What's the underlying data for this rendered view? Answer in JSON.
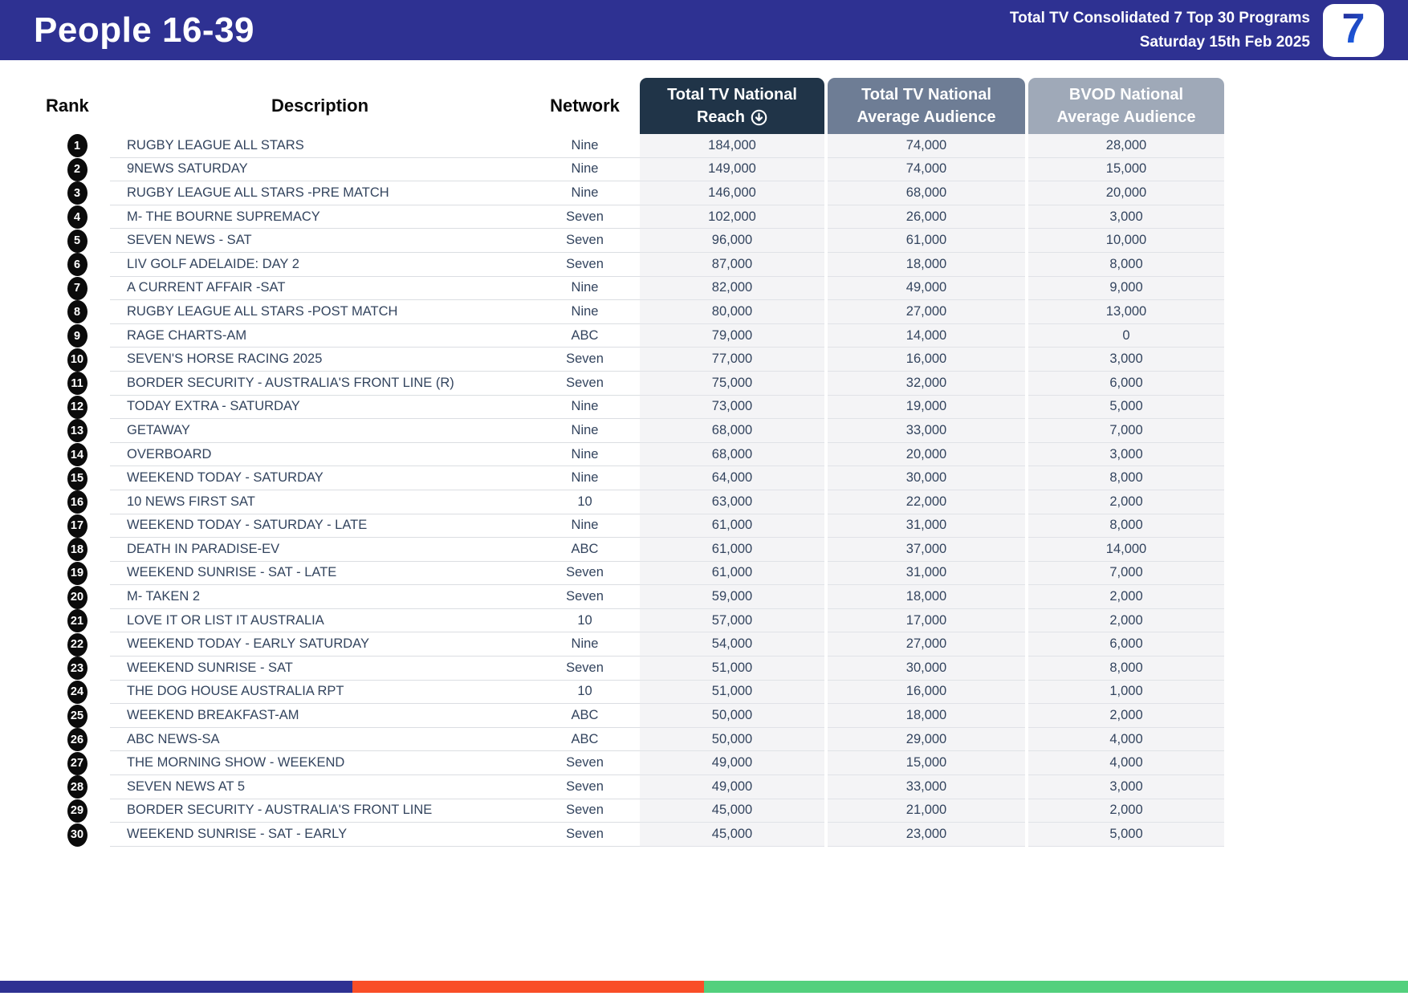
{
  "header": {
    "title": "People 16-39",
    "subtitle_line1": "Total TV Consolidated 7 Top 30 Programs",
    "subtitle_line2": "Saturday 15th Feb 2025",
    "logo_text": "7"
  },
  "table": {
    "plain_columns": {
      "rank": "Rank",
      "description": "Description",
      "network": "Network"
    },
    "value_columns": [
      {
        "line1": "Total TV National",
        "line2": "Reach",
        "sorted": true,
        "color": "#203448"
      },
      {
        "line1": "Total TV National",
        "line2": "Average Audience",
        "sorted": false,
        "color": "#6E7D95"
      },
      {
        "line1": "BVOD National",
        "line2": "Average Audience",
        "sorted": false,
        "color": "#9FA9B8"
      }
    ],
    "rows": [
      {
        "rank": "1",
        "description": "RUGBY LEAGUE ALL STARS",
        "network": "Nine",
        "reach": "184,000",
        "avg_audience": "74,000",
        "bvod_audience": "28,000"
      },
      {
        "rank": "2",
        "description": "9NEWS SATURDAY",
        "network": "Nine",
        "reach": "149,000",
        "avg_audience": "74,000",
        "bvod_audience": "15,000"
      },
      {
        "rank": "3",
        "description": "RUGBY LEAGUE ALL STARS -PRE MATCH",
        "network": "Nine",
        "reach": "146,000",
        "avg_audience": "68,000",
        "bvod_audience": "20,000"
      },
      {
        "rank": "4",
        "description": "M- THE BOURNE SUPREMACY",
        "network": "Seven",
        "reach": "102,000",
        "avg_audience": "26,000",
        "bvod_audience": "3,000"
      },
      {
        "rank": "5",
        "description": "SEVEN NEWS - SAT",
        "network": "Seven",
        "reach": "96,000",
        "avg_audience": "61,000",
        "bvod_audience": "10,000"
      },
      {
        "rank": "6",
        "description": "LIV GOLF ADELAIDE: DAY 2",
        "network": "Seven",
        "reach": "87,000",
        "avg_audience": "18,000",
        "bvod_audience": "8,000"
      },
      {
        "rank": "7",
        "description": "A CURRENT AFFAIR -SAT",
        "network": "Nine",
        "reach": "82,000",
        "avg_audience": "49,000",
        "bvod_audience": "9,000"
      },
      {
        "rank": "8",
        "description": "RUGBY LEAGUE ALL STARS -POST MATCH",
        "network": "Nine",
        "reach": "80,000",
        "avg_audience": "27,000",
        "bvod_audience": "13,000"
      },
      {
        "rank": "9",
        "description": "RAGE CHARTS-AM",
        "network": "ABC",
        "reach": "79,000",
        "avg_audience": "14,000",
        "bvod_audience": "0"
      },
      {
        "rank": "10",
        "description": "SEVEN'S HORSE RACING 2025",
        "network": "Seven",
        "reach": "77,000",
        "avg_audience": "16,000",
        "bvod_audience": "3,000"
      },
      {
        "rank": "11",
        "description": "BORDER SECURITY - AUSTRALIA'S FRONT LINE (R)",
        "network": "Seven",
        "reach": "75,000",
        "avg_audience": "32,000",
        "bvod_audience": "6,000"
      },
      {
        "rank": "12",
        "description": "TODAY EXTRA - SATURDAY",
        "network": "Nine",
        "reach": "73,000",
        "avg_audience": "19,000",
        "bvod_audience": "5,000"
      },
      {
        "rank": "13",
        "description": "GETAWAY",
        "network": "Nine",
        "reach": "68,000",
        "avg_audience": "33,000",
        "bvod_audience": "7,000"
      },
      {
        "rank": "14",
        "description": "OVERBOARD",
        "network": "Nine",
        "reach": "68,000",
        "avg_audience": "20,000",
        "bvod_audience": "3,000"
      },
      {
        "rank": "15",
        "description": "WEEKEND TODAY - SATURDAY",
        "network": "Nine",
        "reach": "64,000",
        "avg_audience": "30,000",
        "bvod_audience": "8,000"
      },
      {
        "rank": "16",
        "description": "10 NEWS FIRST SAT",
        "network": "10",
        "reach": "63,000",
        "avg_audience": "22,000",
        "bvod_audience": "2,000"
      },
      {
        "rank": "17",
        "description": "WEEKEND TODAY - SATURDAY - LATE",
        "network": "Nine",
        "reach": "61,000",
        "avg_audience": "31,000",
        "bvod_audience": "8,000"
      },
      {
        "rank": "18",
        "description": "DEATH IN PARADISE-EV",
        "network": "ABC",
        "reach": "61,000",
        "avg_audience": "37,000",
        "bvod_audience": "14,000"
      },
      {
        "rank": "19",
        "description": "WEEKEND SUNRISE - SAT - LATE",
        "network": "Seven",
        "reach": "61,000",
        "avg_audience": "31,000",
        "bvod_audience": "7,000"
      },
      {
        "rank": "20",
        "description": "M- TAKEN 2",
        "network": "Seven",
        "reach": "59,000",
        "avg_audience": "18,000",
        "bvod_audience": "2,000"
      },
      {
        "rank": "21",
        "description": "LOVE IT OR LIST IT AUSTRALIA",
        "network": "10",
        "reach": "57,000",
        "avg_audience": "17,000",
        "bvod_audience": "2,000"
      },
      {
        "rank": "22",
        "description": "WEEKEND TODAY - EARLY SATURDAY",
        "network": "Nine",
        "reach": "54,000",
        "avg_audience": "27,000",
        "bvod_audience": "6,000"
      },
      {
        "rank": "23",
        "description": "WEEKEND SUNRISE - SAT",
        "network": "Seven",
        "reach": "51,000",
        "avg_audience": "30,000",
        "bvod_audience": "8,000"
      },
      {
        "rank": "24",
        "description": "THE DOG HOUSE AUSTRALIA RPT",
        "network": "10",
        "reach": "51,000",
        "avg_audience": "16,000",
        "bvod_audience": "1,000"
      },
      {
        "rank": "25",
        "description": "WEEKEND BREAKFAST-AM",
        "network": "ABC",
        "reach": "50,000",
        "avg_audience": "18,000",
        "bvod_audience": "2,000"
      },
      {
        "rank": "26",
        "description": "ABC NEWS-SA",
        "network": "ABC",
        "reach": "50,000",
        "avg_audience": "29,000",
        "bvod_audience": "4,000"
      },
      {
        "rank": "27",
        "description": "THE MORNING SHOW - WEEKEND",
        "network": "Seven",
        "reach": "49,000",
        "avg_audience": "15,000",
        "bvod_audience": "4,000"
      },
      {
        "rank": "28",
        "description": "SEVEN NEWS AT 5",
        "network": "Seven",
        "reach": "49,000",
        "avg_audience": "33,000",
        "bvod_audience": "3,000"
      },
      {
        "rank": "29",
        "description": "BORDER SECURITY - AUSTRALIA'S FRONT LINE",
        "network": "Seven",
        "reach": "45,000",
        "avg_audience": "21,000",
        "bvod_audience": "2,000"
      },
      {
        "rank": "30",
        "description": "WEEKEND SUNRISE - SAT - EARLY",
        "network": "Seven",
        "reach": "45,000",
        "avg_audience": "23,000",
        "bvod_audience": "5,000"
      }
    ]
  },
  "colors": {
    "banner_blue": "#2E3192",
    "reach_header": "#203448",
    "avg_header": "#6E7D95",
    "bvod_header": "#9FA9B8",
    "value_cell_bg": "#F4F4F6",
    "footer_blue": "#2E3192",
    "footer_orange": "#F94E27",
    "footer_green": "#53D07D"
  },
  "footer": {
    "segments": [
      {
        "name": "blue-segment",
        "color": "#2E3192",
        "width_pct": 25
      },
      {
        "name": "orange-segment",
        "color": "#F94E27",
        "width_pct": 25
      },
      {
        "name": "green-segment",
        "color": "#53D07D",
        "width_pct": 50
      }
    ]
  }
}
